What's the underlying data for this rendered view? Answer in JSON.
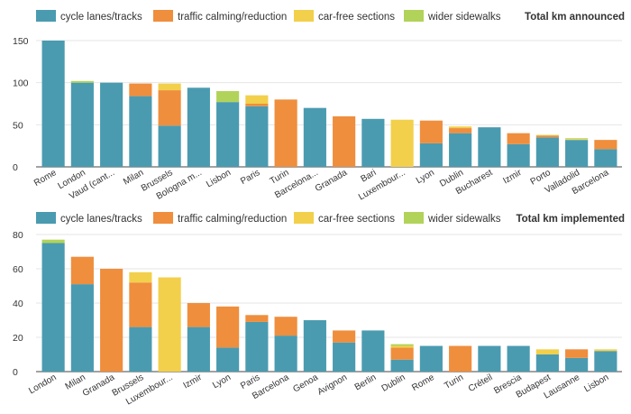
{
  "colors": {
    "cycle": "#4a9bb0",
    "calming": "#ef8e3d",
    "carfree": "#f2d04b",
    "sidewalk": "#b2d35a"
  },
  "chart_data": [
    {
      "type": "bar",
      "stacked": true,
      "title": "Total km announced",
      "legend_position": "top",
      "grid": true,
      "ylim": [
        0,
        150
      ],
      "yticks": [
        0,
        50,
        100,
        150
      ],
      "categories": [
        "Rome",
        "London",
        "Vaud (cant...",
        "Milan",
        "Brussels",
        "Bologna m...",
        "Lisbon",
        "Paris",
        "Turin",
        "Barcelona...",
        "Granada",
        "Bari",
        "Luxembour...",
        "Lyon",
        "Dublin",
        "Bucharest",
        "Izmir",
        "Porto",
        "Valladolid",
        "Barcelona"
      ],
      "series": [
        {
          "name": "cycle lanes/tracks",
          "color_key": "cycle",
          "values": [
            150,
            100,
            100,
            84,
            49,
            94,
            77,
            72,
            0,
            70,
            0,
            57,
            0,
            28,
            40,
            47,
            27,
            35,
            32,
            21
          ]
        },
        {
          "name": "traffic calming/reduction",
          "color_key": "calming",
          "values": [
            0,
            0,
            0,
            15,
            42,
            0,
            0,
            3,
            80,
            0,
            60,
            0,
            0,
            27,
            6,
            0,
            13,
            2,
            0,
            11
          ]
        },
        {
          "name": "car-free sections",
          "color_key": "carfree",
          "values": [
            0,
            0,
            0,
            0,
            8,
            0,
            0,
            10,
            0,
            0,
            0,
            0,
            56,
            0,
            2,
            0,
            0,
            1,
            1,
            0
          ]
        },
        {
          "name": "wider sidewalks",
          "color_key": "sidewalk",
          "values": [
            0,
            2,
            0,
            0,
            0,
            0,
            13,
            0,
            0,
            0,
            0,
            0,
            0,
            0,
            0,
            0,
            0,
            0,
            1,
            0
          ]
        }
      ]
    },
    {
      "type": "bar",
      "stacked": true,
      "title": "Total km implemented",
      "legend_position": "top",
      "grid": true,
      "ylim": [
        0,
        80
      ],
      "yticks": [
        0,
        20,
        40,
        60,
        80
      ],
      "categories": [
        "London",
        "Milan",
        "Granada",
        "Brussels",
        "Luxembour...",
        "Izmir",
        "Lyon",
        "Paris",
        "Barcelona",
        "Genoa",
        "Avignon",
        "Berlin",
        "Dublin",
        "Rome",
        "Turin",
        "Créteil",
        "Brescia",
        "Budapest",
        "Lausanne",
        "Lisbon"
      ],
      "series": [
        {
          "name": "cycle lanes/tracks",
          "color_key": "cycle",
          "values": [
            75,
            51,
            0,
            26,
            0,
            26,
            14,
            29,
            21,
            30,
            17,
            24,
            7,
            15,
            0,
            15,
            15,
            10,
            8,
            12
          ]
        },
        {
          "name": "traffic calming/reduction",
          "color_key": "calming",
          "values": [
            0,
            16,
            60,
            26,
            0,
            14,
            24,
            4,
            11,
            0,
            7,
            0,
            7,
            0,
            15,
            0,
            0,
            0,
            5,
            0
          ]
        },
        {
          "name": "car-free sections",
          "color_key": "carfree",
          "values": [
            0,
            0,
            0,
            6,
            55,
            0,
            0,
            0,
            0,
            0,
            0,
            0,
            1,
            0,
            0,
            0,
            0,
            3,
            0,
            1
          ]
        },
        {
          "name": "wider sidewalks",
          "color_key": "sidewalk",
          "values": [
            2,
            0,
            0,
            0,
            0,
            0,
            0,
            0,
            0,
            0,
            0,
            0,
            1,
            0,
            0,
            0,
            0,
            0,
            0,
            0
          ]
        }
      ]
    }
  ]
}
